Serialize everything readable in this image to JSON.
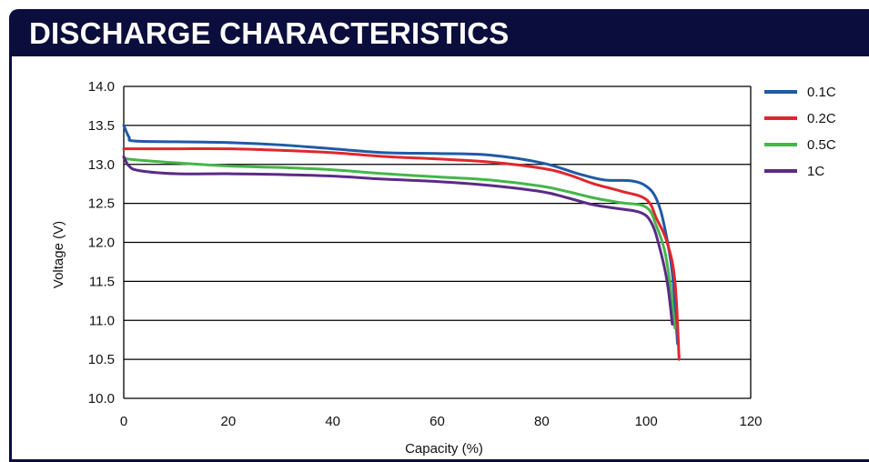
{
  "header": {
    "title": "DISCHARGE CHARACTERISTICS"
  },
  "colors": {
    "header_bg": "#0b0e3c",
    "gridline": "#000000"
  },
  "chart_data": {
    "type": "line",
    "title": "",
    "xlabel": "Capacity (%)",
    "ylabel": "Voltage (V)",
    "xlim": [
      0,
      120
    ],
    "ylim": [
      10.0,
      14.0
    ],
    "xticks": [
      "0",
      "20",
      "40",
      "60",
      "80",
      "100",
      "120"
    ],
    "yticks": [
      "10.0",
      "10.5",
      "11.0",
      "11.5",
      "12.0",
      "12.5",
      "13.0",
      "13.5",
      "14.0"
    ],
    "grid": "horizontal",
    "legend_position": "right",
    "series": [
      {
        "name": "0.1C",
        "color": "#1f5aa6",
        "points": [
          [
            0,
            13.5
          ],
          [
            1,
            13.35
          ],
          [
            2,
            13.3
          ],
          [
            10,
            13.29
          ],
          [
            20,
            13.28
          ],
          [
            30,
            13.25
          ],
          [
            40,
            13.2
          ],
          [
            50,
            13.15
          ],
          [
            60,
            13.14
          ],
          [
            70,
            13.12
          ],
          [
            80,
            13.02
          ],
          [
            87,
            12.88
          ],
          [
            92,
            12.8
          ],
          [
            97,
            12.79
          ],
          [
            100,
            12.72
          ],
          [
            102,
            12.55
          ],
          [
            103.5,
            12.2
          ],
          [
            105,
            11.6
          ],
          [
            106,
            10.7
          ]
        ]
      },
      {
        "name": "0.2C",
        "color": "#e0262d",
        "points": [
          [
            0,
            13.2
          ],
          [
            10,
            13.2
          ],
          [
            20,
            13.2
          ],
          [
            30,
            13.18
          ],
          [
            40,
            13.15
          ],
          [
            50,
            13.1
          ],
          [
            60,
            13.07
          ],
          [
            70,
            13.03
          ],
          [
            80,
            12.95
          ],
          [
            85,
            12.87
          ],
          [
            90,
            12.75
          ],
          [
            95,
            12.66
          ],
          [
            100,
            12.55
          ],
          [
            102,
            12.3
          ],
          [
            104,
            12.0
          ],
          [
            105.5,
            11.5
          ],
          [
            106.3,
            10.5
          ]
        ]
      },
      {
        "name": "0.5C",
        "color": "#45b649",
        "points": [
          [
            0,
            13.08
          ],
          [
            2,
            13.06
          ],
          [
            10,
            13.02
          ],
          [
            20,
            12.98
          ],
          [
            30,
            12.96
          ],
          [
            40,
            12.93
          ],
          [
            50,
            12.88
          ],
          [
            60,
            12.84
          ],
          [
            70,
            12.8
          ],
          [
            80,
            12.72
          ],
          [
            85,
            12.65
          ],
          [
            90,
            12.57
          ],
          [
            95,
            12.51
          ],
          [
            100,
            12.45
          ],
          [
            102,
            12.2
          ],
          [
            103.5,
            11.9
          ],
          [
            104.5,
            11.5
          ],
          [
            105.5,
            10.9
          ]
        ]
      },
      {
        "name": "1C",
        "color": "#5b2a86",
        "points": [
          [
            0,
            13.1
          ],
          [
            1,
            12.98
          ],
          [
            3,
            12.92
          ],
          [
            10,
            12.88
          ],
          [
            20,
            12.88
          ],
          [
            30,
            12.87
          ],
          [
            40,
            12.85
          ],
          [
            50,
            12.81
          ],
          [
            60,
            12.78
          ],
          [
            70,
            12.73
          ],
          [
            80,
            12.65
          ],
          [
            85,
            12.57
          ],
          [
            90,
            12.48
          ],
          [
            95,
            12.43
          ],
          [
            99,
            12.38
          ],
          [
            101,
            12.25
          ],
          [
            102.5,
            11.95
          ],
          [
            104,
            11.5
          ],
          [
            105,
            10.95
          ]
        ]
      }
    ]
  }
}
